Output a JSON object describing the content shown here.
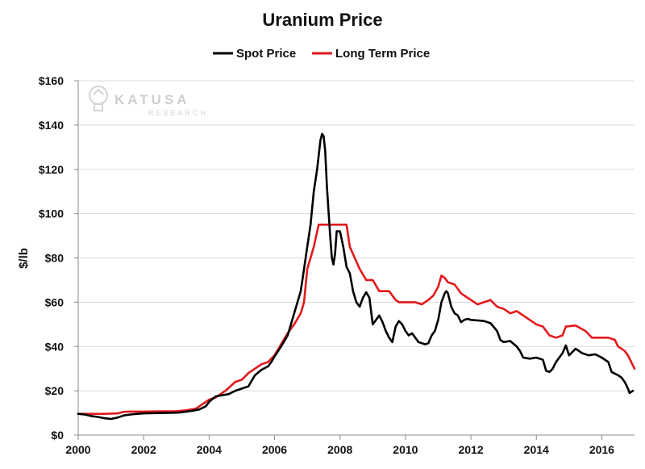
{
  "watermark": {
    "name": "KATUSA",
    "sub": "RESEARCH"
  },
  "colors": {
    "spot": "#000000",
    "long_term": "#e2191c",
    "grid": "#d9d9d9",
    "axis": "#8c8c8c"
  },
  "chart_data": {
    "type": "line",
    "title": "Uranium Price",
    "xlabel": "",
    "ylabel": "$/lb",
    "xlim": [
      2000,
      2017
    ],
    "ylim": [
      0,
      160
    ],
    "x_ticks": [
      2000,
      2002,
      2004,
      2006,
      2008,
      2010,
      2012,
      2014,
      2016
    ],
    "y_ticks": [
      0,
      20,
      40,
      60,
      80,
      100,
      120,
      140,
      160
    ],
    "y_tick_labels": [
      "$0",
      "$20",
      "$40",
      "$60",
      "$80",
      "$100",
      "$120",
      "$140",
      "$160"
    ],
    "grid": true,
    "legend_position": "top-center",
    "series": [
      {
        "name": "Spot Price",
        "color": "#000000",
        "points": [
          [
            2000.0,
            9.6
          ],
          [
            2000.2,
            9.3
          ],
          [
            2000.4,
            8.6
          ],
          [
            2000.6,
            8.2
          ],
          [
            2000.8,
            7.6
          ],
          [
            2001.0,
            7.3
          ],
          [
            2001.2,
            7.9
          ],
          [
            2001.4,
            8.9
          ],
          [
            2001.6,
            9.3
          ],
          [
            2001.8,
            9.6
          ],
          [
            2002.0,
            9.8
          ],
          [
            2002.3,
            9.9
          ],
          [
            2002.6,
            10.0
          ],
          [
            2002.9,
            10.1
          ],
          [
            2003.1,
            10.2
          ],
          [
            2003.3,
            10.6
          ],
          [
            2003.5,
            11.0
          ],
          [
            2003.7,
            11.6
          ],
          [
            2003.9,
            13.0
          ],
          [
            2004.0,
            15.0
          ],
          [
            2004.2,
            17.5
          ],
          [
            2004.4,
            18.0
          ],
          [
            2004.6,
            18.5
          ],
          [
            2004.8,
            20.0
          ],
          [
            2005.0,
            21.0
          ],
          [
            2005.2,
            22.0
          ],
          [
            2005.4,
            27.0
          ],
          [
            2005.6,
            29.5
          ],
          [
            2005.8,
            31.0
          ],
          [
            2005.9,
            33.0
          ],
          [
            2006.0,
            35.5
          ],
          [
            2006.2,
            40.0
          ],
          [
            2006.4,
            45.0
          ],
          [
            2006.6,
            55.0
          ],
          [
            2006.8,
            65.0
          ],
          [
            2006.9,
            75.0
          ],
          [
            2007.0,
            85.0
          ],
          [
            2007.1,
            95.0
          ],
          [
            2007.2,
            110.0
          ],
          [
            2007.3,
            120.0
          ],
          [
            2007.4,
            133.0
          ],
          [
            2007.45,
            136.0
          ],
          [
            2007.5,
            135.0
          ],
          [
            2007.55,
            128.0
          ],
          [
            2007.6,
            112.0
          ],
          [
            2007.7,
            90.0
          ],
          [
            2007.75,
            80.0
          ],
          [
            2007.8,
            77.0
          ],
          [
            2007.85,
            82.0
          ],
          [
            2007.9,
            92.0
          ],
          [
            2008.0,
            92.0
          ],
          [
            2008.1,
            85.0
          ],
          [
            2008.2,
            76.0
          ],
          [
            2008.3,
            73.0
          ],
          [
            2008.4,
            65.0
          ],
          [
            2008.5,
            60.0
          ],
          [
            2008.6,
            58.0
          ],
          [
            2008.7,
            62.0
          ],
          [
            2008.8,
            64.5
          ],
          [
            2008.9,
            62.0
          ],
          [
            2009.0,
            50.0
          ],
          [
            2009.1,
            52.0
          ],
          [
            2009.2,
            54.0
          ],
          [
            2009.3,
            51.0
          ],
          [
            2009.4,
            47.0
          ],
          [
            2009.5,
            44.0
          ],
          [
            2009.6,
            42.0
          ],
          [
            2009.7,
            49.0
          ],
          [
            2009.8,
            51.5
          ],
          [
            2009.9,
            50.0
          ],
          [
            2010.0,
            47.0
          ],
          [
            2010.1,
            45.0
          ],
          [
            2010.2,
            46.0
          ],
          [
            2010.3,
            44.0
          ],
          [
            2010.4,
            42.0
          ],
          [
            2010.5,
            41.5
          ],
          [
            2010.6,
            41.0
          ],
          [
            2010.7,
            41.5
          ],
          [
            2010.8,
            45.0
          ],
          [
            2010.9,
            47.0
          ],
          [
            2011.0,
            52.0
          ],
          [
            2011.1,
            60.0
          ],
          [
            2011.2,
            64.0
          ],
          [
            2011.25,
            65.0
          ],
          [
            2011.3,
            64.0
          ],
          [
            2011.4,
            58.0
          ],
          [
            2011.5,
            55.0
          ],
          [
            2011.6,
            54.0
          ],
          [
            2011.7,
            51.0
          ],
          [
            2011.8,
            52.0
          ],
          [
            2011.9,
            52.5
          ],
          [
            2012.0,
            52.0
          ],
          [
            2012.2,
            51.8
          ],
          [
            2012.4,
            51.5
          ],
          [
            2012.6,
            50.5
          ],
          [
            2012.8,
            47.0
          ],
          [
            2012.9,
            43.0
          ],
          [
            2013.0,
            42.0
          ],
          [
            2013.2,
            42.5
          ],
          [
            2013.4,
            40.0
          ],
          [
            2013.5,
            38.0
          ],
          [
            2013.6,
            35.0
          ],
          [
            2013.8,
            34.5
          ],
          [
            2014.0,
            35.0
          ],
          [
            2014.2,
            34.0
          ],
          [
            2014.3,
            29.0
          ],
          [
            2014.4,
            28.5
          ],
          [
            2014.5,
            30.0
          ],
          [
            2014.6,
            33.0
          ],
          [
            2014.8,
            37.0
          ],
          [
            2014.9,
            40.5
          ],
          [
            2015.0,
            36.0
          ],
          [
            2015.1,
            37.5
          ],
          [
            2015.2,
            39.0
          ],
          [
            2015.4,
            37.0
          ],
          [
            2015.6,
            36.0
          ],
          [
            2015.8,
            36.5
          ],
          [
            2016.0,
            35.0
          ],
          [
            2016.2,
            33.0
          ],
          [
            2016.3,
            28.5
          ],
          [
            2016.5,
            27.0
          ],
          [
            2016.6,
            26.0
          ],
          [
            2016.7,
            24.0
          ],
          [
            2016.8,
            21.0
          ],
          [
            2016.85,
            19.0
          ],
          [
            2016.95,
            20.0
          ]
        ]
      },
      {
        "name": "Long Term Price",
        "color": "#e2191c",
        "points": [
          [
            2000.0,
            9.6
          ],
          [
            2000.4,
            9.6
          ],
          [
            2000.8,
            9.6
          ],
          [
            2001.2,
            9.8
          ],
          [
            2001.4,
            10.5
          ],
          [
            2001.6,
            10.6
          ],
          [
            2002.0,
            10.6
          ],
          [
            2002.5,
            10.7
          ],
          [
            2003.0,
            10.8
          ],
          [
            2003.3,
            11.2
          ],
          [
            2003.6,
            12.0
          ],
          [
            2004.0,
            16.0
          ],
          [
            2004.2,
            17.0
          ],
          [
            2004.5,
            20.0
          ],
          [
            2004.8,
            24.0
          ],
          [
            2005.0,
            25.0
          ],
          [
            2005.2,
            28.0
          ],
          [
            2005.4,
            30.0
          ],
          [
            2005.6,
            32.0
          ],
          [
            2005.8,
            33.0
          ],
          [
            2006.0,
            36.0
          ],
          [
            2006.2,
            41.0
          ],
          [
            2006.4,
            46.0
          ],
          [
            2006.6,
            50.0
          ],
          [
            2006.8,
            55.0
          ],
          [
            2006.9,
            60.0
          ],
          [
            2007.0,
            75.0
          ],
          [
            2007.1,
            80.0
          ],
          [
            2007.2,
            85.0
          ],
          [
            2007.35,
            95.0
          ],
          [
            2007.5,
            95.0
          ],
          [
            2007.7,
            95.0
          ],
          [
            2008.0,
            95.0
          ],
          [
            2008.2,
            95.0
          ],
          [
            2008.3,
            85.0
          ],
          [
            2008.45,
            80.0
          ],
          [
            2008.6,
            75.0
          ],
          [
            2008.8,
            70.0
          ],
          [
            2009.0,
            70.0
          ],
          [
            2009.2,
            65.0
          ],
          [
            2009.5,
            65.0
          ],
          [
            2009.7,
            61.0
          ],
          [
            2009.8,
            60.0
          ],
          [
            2010.0,
            60.0
          ],
          [
            2010.3,
            60.0
          ],
          [
            2010.5,
            59.0
          ],
          [
            2010.7,
            61.0
          ],
          [
            2010.85,
            63.0
          ],
          [
            2011.0,
            67.0
          ],
          [
            2011.1,
            72.0
          ],
          [
            2011.2,
            71.0
          ],
          [
            2011.3,
            69.0
          ],
          [
            2011.5,
            68.0
          ],
          [
            2011.7,
            64.0
          ],
          [
            2011.9,
            62.0
          ],
          [
            2012.0,
            61.0
          ],
          [
            2012.2,
            59.0
          ],
          [
            2012.4,
            60.0
          ],
          [
            2012.6,
            61.0
          ],
          [
            2012.8,
            58.0
          ],
          [
            2013.0,
            57.0
          ],
          [
            2013.2,
            55.0
          ],
          [
            2013.4,
            56.0
          ],
          [
            2013.6,
            54.0
          ],
          [
            2013.8,
            52.0
          ],
          [
            2014.0,
            50.0
          ],
          [
            2014.2,
            49.0
          ],
          [
            2014.4,
            45.0
          ],
          [
            2014.6,
            44.0
          ],
          [
            2014.8,
            45.0
          ],
          [
            2014.9,
            49.0
          ],
          [
            2015.2,
            49.5
          ],
          [
            2015.5,
            47.0
          ],
          [
            2015.7,
            44.0
          ],
          [
            2016.0,
            44.0
          ],
          [
            2016.2,
            44.0
          ],
          [
            2016.4,
            43.0
          ],
          [
            2016.5,
            40.0
          ],
          [
            2016.7,
            38.0
          ],
          [
            2016.8,
            36.0
          ],
          [
            2016.9,
            33.0
          ],
          [
            2017.0,
            30.0
          ]
        ]
      }
    ]
  }
}
